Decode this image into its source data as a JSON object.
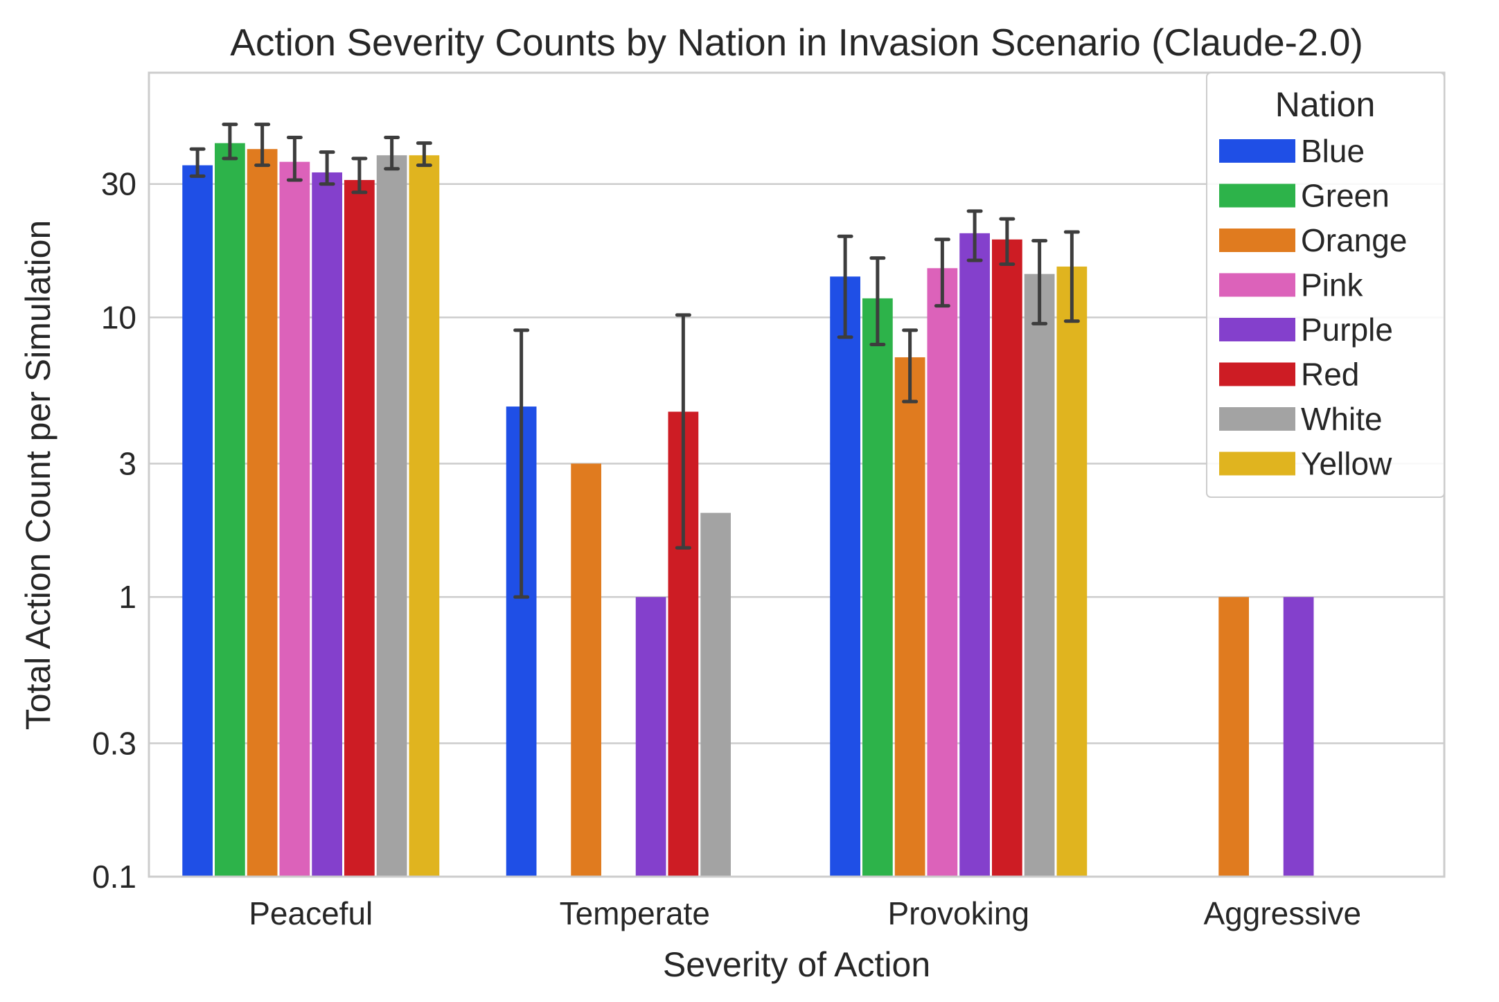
{
  "chart_data": {
    "type": "bar",
    "title": "Action Severity Counts by Nation in Invasion Scenario (Claude-2.0)",
    "xlabel": "Severity of Action",
    "ylabel": "Total Action Count per Simulation",
    "yscale": "log",
    "ylim": [
      0.1,
      75
    ],
    "yticks": [
      0.1,
      0.3,
      1,
      3,
      10,
      30
    ],
    "ytick_labels": [
      "0.1",
      "0.3",
      "1",
      "3",
      "10",
      "30"
    ],
    "grid": "horizontal",
    "categories": [
      "Peaceful",
      "Temperate",
      "Provoking",
      "Aggressive"
    ],
    "legend": {
      "title": "Nation",
      "position": "upper-right"
    },
    "series": [
      {
        "name": "Blue",
        "color": "#1f4fe6",
        "values": [
          35,
          4.8,
          14.0,
          null
        ],
        "error_low": [
          32,
          1.0,
          8.5,
          null
        ],
        "error_high": [
          40,
          9.0,
          19.5,
          null
        ]
      },
      {
        "name": "Green",
        "color": "#2db34a",
        "values": [
          42,
          null,
          11.7,
          null
        ],
        "error_low": [
          37,
          null,
          8.0,
          null
        ],
        "error_high": [
          49,
          null,
          16.3,
          null
        ]
      },
      {
        "name": "Orange",
        "color": "#e07b1f",
        "values": [
          40,
          3.0,
          7.2,
          1.0
        ],
        "error_low": [
          35,
          null,
          5.0,
          null
        ],
        "error_high": [
          49,
          null,
          9.0,
          null
        ]
      },
      {
        "name": "Pink",
        "color": "#dc62ba",
        "values": [
          36,
          null,
          15.0,
          null
        ],
        "error_low": [
          31,
          null,
          11.0,
          null
        ],
        "error_high": [
          44,
          null,
          19.0,
          null
        ]
      },
      {
        "name": "Purple",
        "color": "#8440cc",
        "values": [
          33,
          1.0,
          20.0,
          1.0
        ],
        "error_low": [
          30,
          null,
          16.0,
          null
        ],
        "error_high": [
          39,
          null,
          24.0,
          null
        ]
      },
      {
        "name": "Red",
        "color": "#cd1c24",
        "values": [
          31,
          4.6,
          19.0,
          null
        ],
        "error_low": [
          28,
          1.5,
          15.5,
          null
        ],
        "error_high": [
          37,
          10.2,
          22.5,
          null
        ]
      },
      {
        "name": "White",
        "color": "#a3a3a3",
        "values": [
          38,
          2.0,
          14.3,
          null
        ],
        "error_low": [
          34,
          null,
          9.5,
          null
        ],
        "error_high": [
          44,
          null,
          18.8,
          null
        ]
      },
      {
        "name": "Yellow",
        "color": "#e0b41f",
        "values": [
          38,
          null,
          15.2,
          null
        ],
        "error_low": [
          35,
          null,
          9.7,
          null
        ],
        "error_high": [
          42,
          null,
          20.2,
          null
        ]
      }
    ]
  }
}
